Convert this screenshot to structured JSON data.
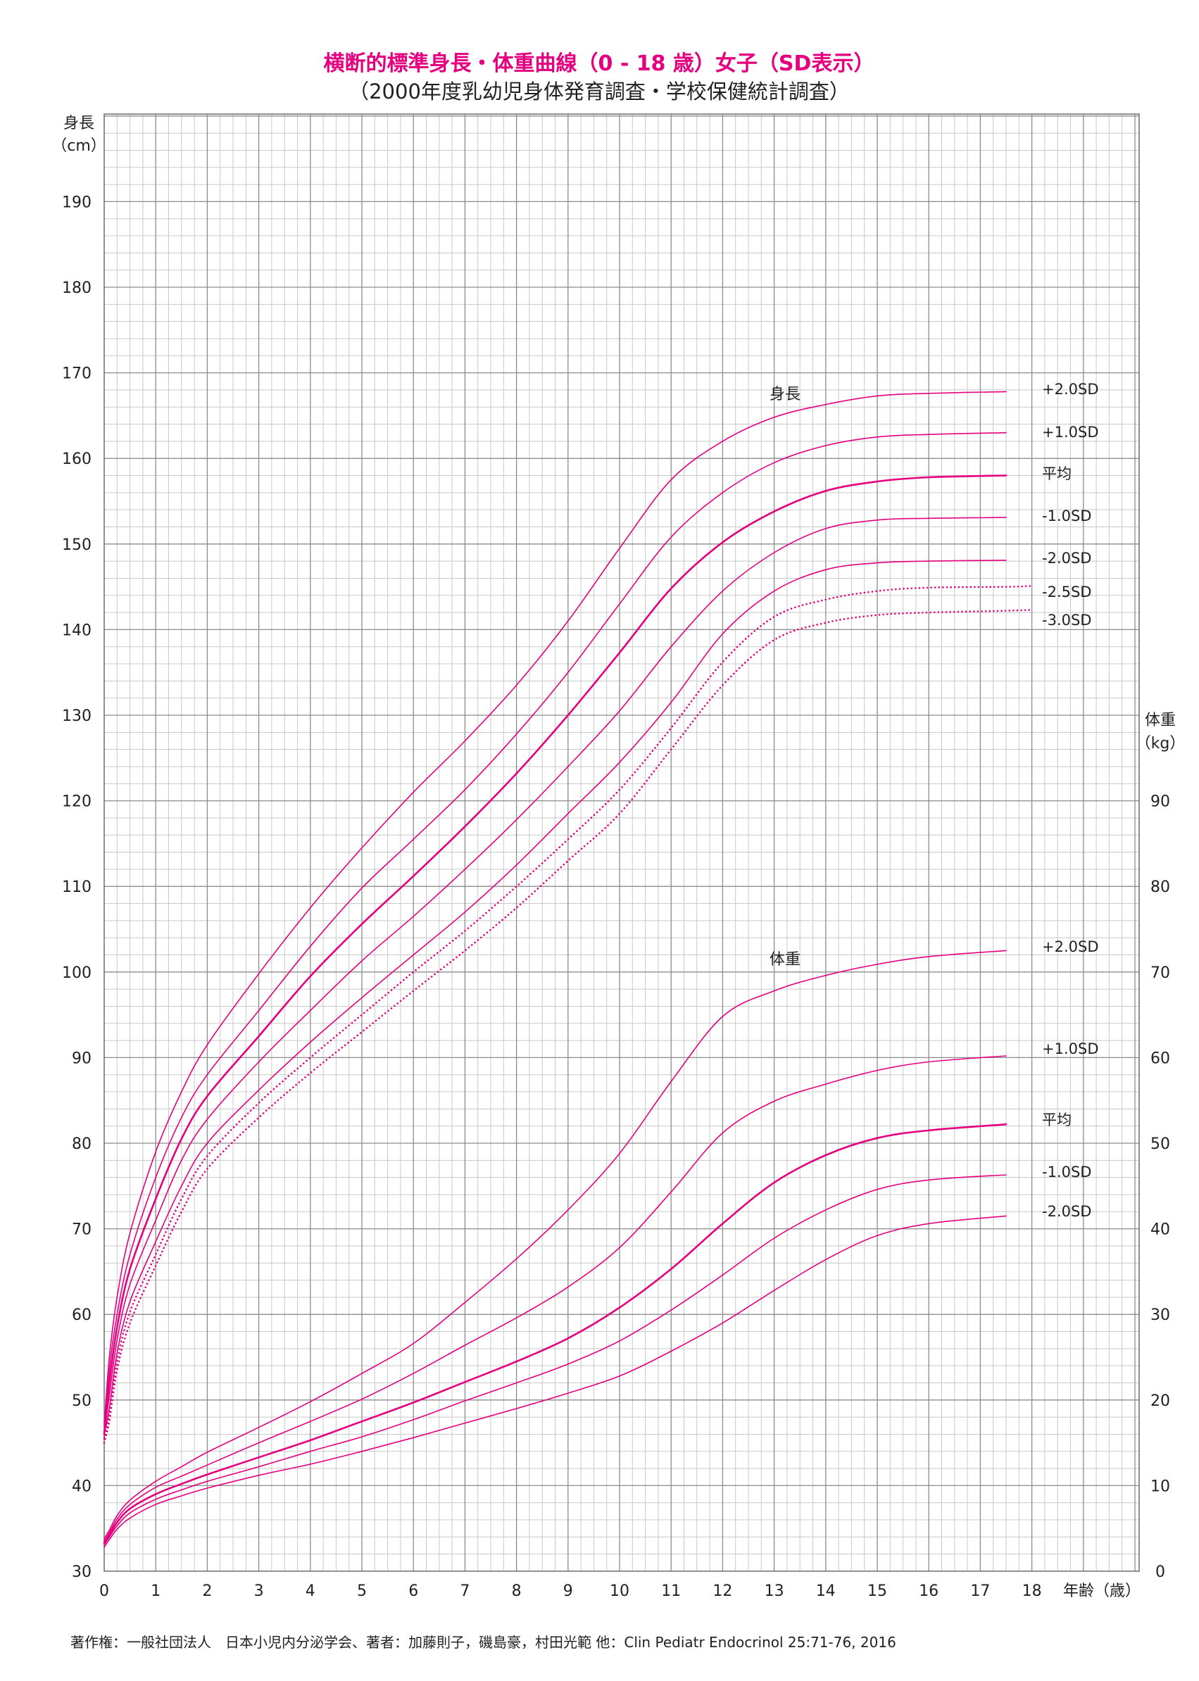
{
  "title": "横断的標準身長・体重曲線（0 - 18 歳）女子（SD表示）",
  "subtitle": "（2000年度乳幼児身体発育調査・学校保健統計調査）",
  "footer": "著作権：一般社団法人　日本小児内分泌学会、著者：加藤則子，磯島豪，村田光範 他：Clin Pediatr Endocrinol 25:71-76, 2016",
  "colors": {
    "curve": "#e4007f",
    "title": "#e4007f",
    "grid_major": "#8c8c8c",
    "grid_minor": "#c8c8c8"
  },
  "chart_data": {
    "type": "line",
    "x": {
      "label": "年齢（歳）",
      "range": [
        0,
        18
      ],
      "ticks": [
        0,
        1,
        2,
        3,
        4,
        5,
        6,
        7,
        8,
        9,
        10,
        11,
        12,
        13,
        14,
        15,
        16,
        17,
        18
      ]
    },
    "y_height": {
      "label_line1": "身長",
      "label_line2": "（cm）",
      "range": [
        30,
        200
      ],
      "ticks": [
        30,
        40,
        50,
        60,
        70,
        80,
        90,
        100,
        110,
        120,
        130,
        140,
        150,
        160,
        170,
        180,
        190
      ]
    },
    "y_weight": {
      "label_line1": "体重",
      "label_line2": "（kg）",
      "range": [
        0,
        93
      ],
      "ticks": [
        0,
        10,
        20,
        30,
        40,
        50,
        60,
        70,
        80,
        90
      ]
    },
    "height_group_label": "身長",
    "weight_group_label": "体重",
    "grid": true,
    "height_series": [
      {
        "name": "+2.0SD",
        "style": "solid",
        "points": [
          [
            0,
            47
          ],
          [
            0.1,
            55
          ],
          [
            0.25,
            62
          ],
          [
            0.5,
            69.5
          ],
          [
            1,
            79
          ],
          [
            1.5,
            86
          ],
          [
            2,
            91.5
          ],
          [
            3,
            99.8
          ],
          [
            4,
            107.5
          ],
          [
            5,
            114.5
          ],
          [
            6,
            121
          ],
          [
            7,
            127
          ],
          [
            8,
            133.5
          ],
          [
            9,
            141
          ],
          [
            10,
            149.5
          ],
          [
            11,
            157.5
          ],
          [
            12,
            162
          ],
          [
            13,
            164.8
          ],
          [
            14,
            166.3
          ],
          [
            15,
            167.3
          ],
          [
            16,
            167.6
          ],
          [
            17.5,
            167.8
          ]
        ]
      },
      {
        "name": "+1.0SD",
        "style": "solid",
        "points": [
          [
            0,
            45.5
          ],
          [
            0.1,
            53.5
          ],
          [
            0.25,
            60
          ],
          [
            0.5,
            67
          ],
          [
            1,
            76
          ],
          [
            1.5,
            83
          ],
          [
            2,
            88
          ],
          [
            3,
            95.5
          ],
          [
            4,
            103
          ],
          [
            5,
            109.8
          ],
          [
            6,
            115.5
          ],
          [
            7,
            121.3
          ],
          [
            8,
            127.8
          ],
          [
            9,
            135
          ],
          [
            10,
            143
          ],
          [
            11,
            150.8
          ],
          [
            12,
            156
          ],
          [
            13,
            159.5
          ],
          [
            14,
            161.5
          ],
          [
            15,
            162.5
          ],
          [
            16,
            162.8
          ],
          [
            17.5,
            163
          ]
        ]
      },
      {
        "name": "平均",
        "style": "bold",
        "points": [
          [
            0,
            46
          ],
          [
            0.1,
            52
          ],
          [
            0.25,
            58.5
          ],
          [
            0.5,
            65.3
          ],
          [
            1,
            73.5
          ],
          [
            1.5,
            80.5
          ],
          [
            2,
            85.5
          ],
          [
            3,
            92.5
          ],
          [
            4,
            99.5
          ],
          [
            5,
            105.6
          ],
          [
            6,
            111.2
          ],
          [
            7,
            117
          ],
          [
            8,
            123.2
          ],
          [
            9,
            130
          ],
          [
            10,
            137.3
          ],
          [
            11,
            144.8
          ],
          [
            12,
            150.2
          ],
          [
            13,
            153.8
          ],
          [
            14,
            156.2
          ],
          [
            15,
            157.3
          ],
          [
            16,
            157.8
          ],
          [
            17.5,
            158
          ]
        ]
      },
      {
        "name": "-1.0SD",
        "style": "solid",
        "points": [
          [
            0,
            46
          ],
          [
            0.1,
            50.5
          ],
          [
            0.25,
            57
          ],
          [
            0.5,
            63.5
          ],
          [
            1,
            71
          ],
          [
            1.5,
            78
          ],
          [
            2,
            82.8
          ],
          [
            3,
            89.5
          ],
          [
            4,
            95.5
          ],
          [
            5,
            101.3
          ],
          [
            6,
            106.5
          ],
          [
            7,
            112
          ],
          [
            8,
            117.8
          ],
          [
            9,
            124
          ],
          [
            10,
            130.5
          ],
          [
            11,
            138
          ],
          [
            12,
            144.5
          ],
          [
            13,
            149
          ],
          [
            14,
            151.8
          ],
          [
            15,
            152.8
          ],
          [
            16,
            153
          ],
          [
            17.5,
            153.1
          ]
        ]
      },
      {
        "name": "-2.0SD",
        "style": "solid",
        "points": [
          [
            0,
            46
          ],
          [
            0.1,
            49
          ],
          [
            0.25,
            55.5
          ],
          [
            0.5,
            61.5
          ],
          [
            1,
            68.5
          ],
          [
            1.5,
            75
          ],
          [
            2,
            80
          ],
          [
            3,
            86.2
          ],
          [
            4,
            91.8
          ],
          [
            5,
            97
          ],
          [
            6,
            102
          ],
          [
            7,
            107
          ],
          [
            8,
            112.5
          ],
          [
            9,
            118.5
          ],
          [
            10,
            124.5
          ],
          [
            11,
            131.5
          ],
          [
            12,
            139.5
          ],
          [
            13,
            144.5
          ],
          [
            14,
            147
          ],
          [
            15,
            147.8
          ],
          [
            16,
            148
          ],
          [
            17.5,
            148.1
          ]
        ]
      },
      {
        "name": "-2.5SD",
        "style": "dotted",
        "points": [
          [
            0,
            45.5
          ],
          [
            0.1,
            48.3
          ],
          [
            0.25,
            54.5
          ],
          [
            0.5,
            60.3
          ],
          [
            1,
            67
          ],
          [
            1.5,
            73.5
          ],
          [
            2,
            78.5
          ],
          [
            3,
            84.7
          ],
          [
            4,
            90
          ],
          [
            5,
            95
          ],
          [
            6,
            100
          ],
          [
            7,
            104.8
          ],
          [
            8,
            110
          ],
          [
            9,
            115.5
          ],
          [
            10,
            121.3
          ],
          [
            11,
            128.5
          ],
          [
            12,
            136.2
          ],
          [
            13,
            141.5
          ],
          [
            14,
            143.5
          ],
          [
            15,
            144.5
          ],
          [
            16,
            144.9
          ],
          [
            17.5,
            145
          ],
          [
            18,
            145.1
          ]
        ]
      },
      {
        "name": "-3.0SD",
        "style": "dotted",
        "points": [
          [
            0,
            45
          ],
          [
            0.1,
            47.5
          ],
          [
            0.25,
            53.5
          ],
          [
            0.5,
            59
          ],
          [
            1,
            65.7
          ],
          [
            1.5,
            72
          ],
          [
            2,
            77
          ],
          [
            3,
            83
          ],
          [
            4,
            88.2
          ],
          [
            5,
            93
          ],
          [
            6,
            97.8
          ],
          [
            7,
            102.5
          ],
          [
            8,
            107.5
          ],
          [
            9,
            113
          ],
          [
            10,
            118.5
          ],
          [
            11,
            126
          ],
          [
            12,
            133.5
          ],
          [
            13,
            138.8
          ],
          [
            14,
            140.8
          ],
          [
            15,
            141.7
          ],
          [
            16,
            142
          ],
          [
            17.5,
            142.2
          ],
          [
            18,
            142.3
          ]
        ]
      }
    ],
    "weight_series": [
      {
        "name": "+2.0SD",
        "style": "solid",
        "points": [
          [
            0,
            3.8
          ],
          [
            0.1,
            4.8
          ],
          [
            0.25,
            6.5
          ],
          [
            0.5,
            8.3
          ],
          [
            1,
            10.5
          ],
          [
            1.5,
            12.2
          ],
          [
            2,
            13.9
          ],
          [
            3,
            16.8
          ],
          [
            4,
            19.8
          ],
          [
            5,
            23.1
          ],
          [
            6,
            26.6
          ],
          [
            7,
            31.4
          ],
          [
            8,
            36.5
          ],
          [
            9,
            42.2
          ],
          [
            10,
            48.8
          ],
          [
            11,
            57.2
          ],
          [
            12,
            64.8
          ],
          [
            13,
            67.8
          ],
          [
            14,
            69.6
          ],
          [
            15,
            70.9
          ],
          [
            16,
            71.8
          ],
          [
            17.5,
            72.5
          ]
        ]
      },
      {
        "name": "+1.0SD",
        "style": "solid",
        "points": [
          [
            0,
            3.5
          ],
          [
            0.1,
            4.5
          ],
          [
            0.25,
            6.1
          ],
          [
            0.5,
            7.8
          ],
          [
            1,
            9.8
          ],
          [
            1.5,
            11.1
          ],
          [
            2,
            12.4
          ],
          [
            3,
            15
          ],
          [
            4,
            17.5
          ],
          [
            5,
            20.1
          ],
          [
            6,
            23.1
          ],
          [
            7,
            26.4
          ],
          [
            8,
            29.6
          ],
          [
            9,
            33.2
          ],
          [
            10,
            37.8
          ],
          [
            11,
            44.3
          ],
          [
            12,
            51.2
          ],
          [
            13,
            54.9
          ],
          [
            14,
            56.9
          ],
          [
            15,
            58.5
          ],
          [
            16,
            59.5
          ],
          [
            17.5,
            60.2
          ]
        ]
      },
      {
        "name": "平均",
        "style": "bold",
        "points": [
          [
            0,
            3.3
          ],
          [
            0.1,
            4.2
          ],
          [
            0.25,
            5.7
          ],
          [
            0.5,
            7.3
          ],
          [
            1,
            9
          ],
          [
            1.5,
            10.2
          ],
          [
            2,
            11.3
          ],
          [
            3,
            13.3
          ],
          [
            4,
            15.3
          ],
          [
            5,
            17.5
          ],
          [
            6,
            19.7
          ],
          [
            7,
            22.1
          ],
          [
            8,
            24.5
          ],
          [
            9,
            27.2
          ],
          [
            10,
            30.8
          ],
          [
            11,
            35.3
          ],
          [
            12,
            40.6
          ],
          [
            13,
            45.4
          ],
          [
            14,
            48.6
          ],
          [
            15,
            50.6
          ],
          [
            16,
            51.5
          ],
          [
            17.5,
            52.2
          ]
        ]
      },
      {
        "name": "-1.0SD",
        "style": "solid",
        "points": [
          [
            0,
            3.1
          ],
          [
            0.1,
            4
          ],
          [
            0.25,
            5.3
          ],
          [
            0.5,
            6.8
          ],
          [
            1,
            8.4
          ],
          [
            1.5,
            9.5
          ],
          [
            2,
            10.5
          ],
          [
            3,
            12.2
          ],
          [
            4,
            14
          ],
          [
            5,
            15.7
          ],
          [
            6,
            17.7
          ],
          [
            7,
            19.9
          ],
          [
            8,
            22
          ],
          [
            9,
            24.2
          ],
          [
            10,
            26.9
          ],
          [
            11,
            30.5
          ],
          [
            12,
            34.6
          ],
          [
            13,
            38.9
          ],
          [
            14,
            42.2
          ],
          [
            15,
            44.6
          ],
          [
            16,
            45.7
          ],
          [
            17.5,
            46.3
          ]
        ]
      },
      {
        "name": "-2.0SD",
        "style": "solid",
        "points": [
          [
            0,
            2.8
          ],
          [
            0.1,
            3.7
          ],
          [
            0.25,
            4.9
          ],
          [
            0.5,
            6.2
          ],
          [
            1,
            7.8
          ],
          [
            1.5,
            8.8
          ],
          [
            2,
            9.7
          ],
          [
            3,
            11.2
          ],
          [
            4,
            12.5
          ],
          [
            5,
            14
          ],
          [
            6,
            15.6
          ],
          [
            7,
            17.3
          ],
          [
            8,
            19
          ],
          [
            9,
            20.8
          ],
          [
            10,
            22.8
          ],
          [
            11,
            25.7
          ],
          [
            12,
            29
          ],
          [
            13,
            32.8
          ],
          [
            14,
            36.4
          ],
          [
            15,
            39.2
          ],
          [
            16,
            40.6
          ],
          [
            17.5,
            41.5
          ]
        ]
      }
    ]
  }
}
